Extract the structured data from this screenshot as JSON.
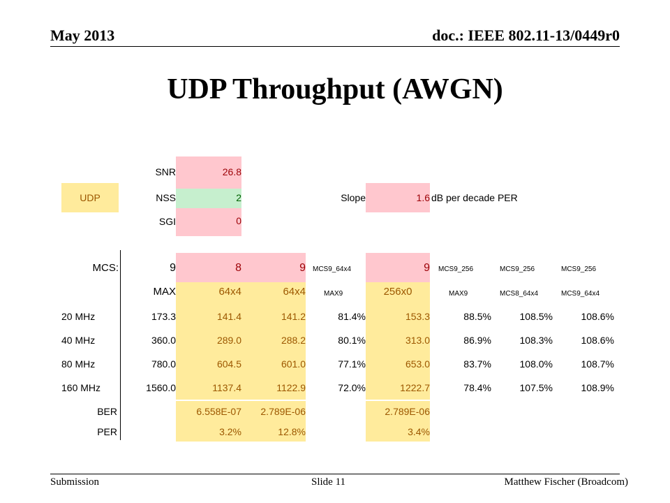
{
  "header": {
    "date": "May 2013",
    "doc": "doc.: IEEE 802.11-13/0449r0"
  },
  "title": "UDP Throughput (AWGN)",
  "footer": {
    "left": "Submission",
    "middle": "Slide 11",
    "right": "Matthew Fischer (Broadcom)"
  },
  "params": {
    "snr_label": "SNR",
    "snr_value": "26.8",
    "udp_label": "UDP",
    "nss_label": "NSS",
    "nss_value": "2",
    "sgi_label": "SGI",
    "sgi_value": "0",
    "slope_label": "Slope",
    "slope_value": "1.6",
    "slope_unit": "dB per decade PER"
  },
  "table": {
    "header1": [
      "MCS:",
      "9",
      "8",
      "9",
      "MCS9_64x4",
      "9",
      "MCS9_256",
      "MCS9_256",
      "MCS9_256"
    ],
    "header2": [
      "",
      "MAX",
      "64x4",
      "64x4",
      "MAX9",
      "256x0",
      "MAX9",
      "MCS8_64x4",
      "MCS9_64x4"
    ],
    "rows": [
      [
        "20 MHz",
        "173.3",
        "141.4",
        "141.2",
        "81.4%",
        "153.3",
        "88.5%",
        "108.5%",
        "108.6%"
      ],
      [
        "40 MHz",
        "360.0",
        "289.0",
        "288.2",
        "80.1%",
        "313.0",
        "86.9%",
        "108.3%",
        "108.6%"
      ],
      [
        "80 MHz",
        "780.0",
        "604.5",
        "601.0",
        "77.1%",
        "653.0",
        "83.7%",
        "108.0%",
        "108.7%"
      ],
      [
        "160 MHz",
        "1560.0",
        "1137.4",
        "1122.9",
        "72.0%",
        "1222.7",
        "78.4%",
        "107.5%",
        "108.9%"
      ]
    ],
    "ber": [
      "BER",
      "",
      "6.558E-07",
      "2.789E-06",
      "",
      "2.789E-06",
      "",
      "",
      ""
    ],
    "per": [
      "PER",
      "",
      "3.2%",
      "12.8%",
      "",
      "3.4%",
      "",
      "",
      ""
    ]
  }
}
